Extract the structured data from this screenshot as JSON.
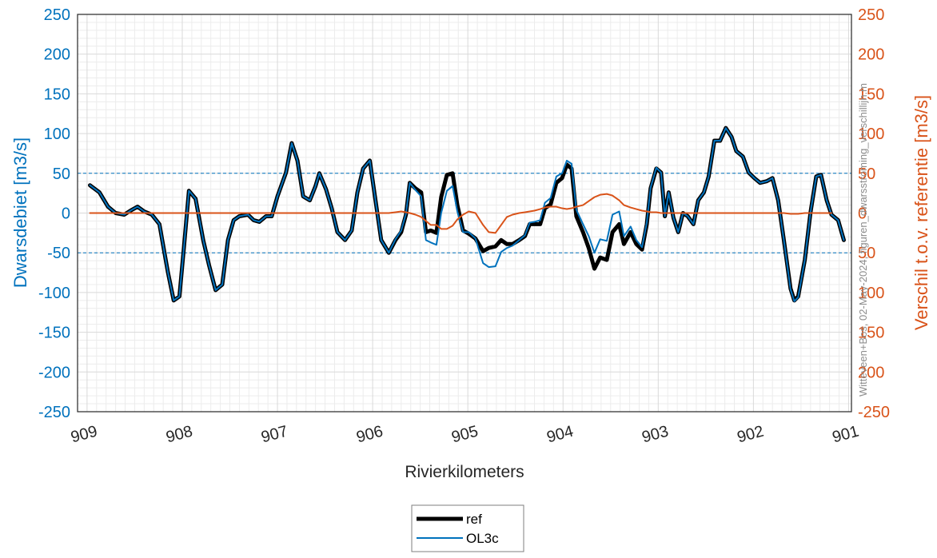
{
  "chart_data": {
    "type": "line",
    "xlabel": "Rivierkilometers",
    "ylabel": "Dwarsdebiet [m3/s]",
    "y2label": "Verschil t.o.v. referentie [m3/s]",
    "annotation": "Witteveen+Bos, 02-May-2024, figuren_dwarsstroming_verschillijn.m",
    "xlim": [
      909.1,
      900.97
    ],
    "xticks": [
      909,
      908,
      907,
      906,
      905,
      904,
      903,
      902,
      901
    ],
    "ylim": [
      -250,
      250
    ],
    "yticks": [
      -250,
      -200,
      -150,
      -100,
      -50,
      0,
      50,
      100,
      150,
      200,
      250
    ],
    "y2lim": [
      -250,
      250
    ],
    "y2ticks": [
      -250,
      {
        "value": -200,
        "label": "200"
      },
      {
        "value": -150,
        "label": "150"
      },
      {
        "value": -100,
        "label": "100"
      },
      {
        "value": -50,
        "label": "50"
      },
      0,
      50,
      100,
      150,
      200,
      250
    ],
    "y_color": "#0072BD",
    "y2_color": "#D95319",
    "grid": true,
    "minor_grid": true,
    "hlines": [
      -50,
      50
    ],
    "hline_color": "#0072BD",
    "legend": "below",
    "x": [
      908.97,
      908.87,
      908.78,
      908.7,
      908.61,
      908.53,
      908.47,
      908.4,
      908.32,
      908.24,
      908.15,
      908.09,
      908.03,
      907.98,
      907.93,
      907.86,
      907.78,
      907.72,
      907.65,
      907.58,
      907.52,
      907.46,
      907.4,
      907.31,
      907.25,
      907.19,
      907.12,
      907.06,
      907.0,
      906.91,
      906.85,
      906.79,
      906.73,
      906.66,
      906.6,
      906.56,
      906.49,
      906.43,
      906.37,
      906.29,
      906.22,
      906.16,
      906.1,
      906.03,
      905.97,
      905.91,
      905.83,
      905.76,
      905.7,
      905.65,
      905.61,
      905.55,
      905.49,
      905.44,
      905.39,
      905.33,
      905.28,
      905.22,
      905.16,
      905.11,
      905.05,
      904.99,
      904.92,
      904.84,
      904.78,
      904.71,
      904.65,
      904.59,
      904.53,
      904.46,
      904.4,
      904.35,
      904.3,
      904.24,
      904.19,
      904.13,
      904.07,
      904.01,
      903.96,
      903.91,
      903.86,
      903.79,
      903.73,
      903.67,
      903.61,
      903.54,
      903.48,
      903.41,
      903.36,
      903.29,
      903.23,
      903.17,
      903.12,
      903.08,
      903.02,
      902.97,
      902.93,
      902.89,
      902.84,
      902.79,
      902.74,
      902.69,
      902.63,
      902.58,
      902.52,
      902.47,
      902.41,
      902.35,
      902.29,
      902.23,
      902.18,
      902.11,
      902.05,
      901.99,
      901.93,
      901.86,
      901.8,
      901.74,
      901.68,
      901.61,
      901.57,
      901.53,
      901.46,
      901.4,
      901.34,
      901.29,
      901.23,
      901.18,
      901.11,
      901.05
    ],
    "series": [
      {
        "name": "ref",
        "color": "#000000",
        "values": [
          35,
          26,
          8,
          0,
          -2,
          4,
          8,
          2,
          -2,
          -14,
          -75,
          -110,
          -105,
          -40,
          28,
          18,
          -34,
          -65,
          -97,
          -90,
          -34,
          -9,
          -4,
          -2,
          -9,
          -11,
          -4,
          -4,
          21,
          51,
          88,
          66,
          21,
          16,
          34,
          50,
          30,
          6,
          -24,
          -34,
          -22,
          26,
          56,
          66,
          16,
          -34,
          -50,
          -34,
          -24,
          -2,
          38,
          31,
          26,
          -24,
          -22,
          -25,
          20,
          48,
          50,
          10,
          -22,
          -26,
          -32,
          -48,
          -44,
          -42,
          -34,
          -39,
          -39,
          -34,
          -29,
          -14,
          -14,
          -14,
          6,
          11,
          38,
          44,
          61,
          56,
          -4,
          -24,
          -44,
          -70,
          -56,
          -59,
          -24,
          -14,
          -39,
          -24,
          -39,
          -46,
          -14,
          31,
          56,
          51,
          -4,
          26,
          -6,
          -24,
          0,
          -4,
          -14,
          16,
          26,
          46,
          91,
          91,
          107,
          96,
          78,
          71,
          51,
          44,
          38,
          40,
          44,
          16,
          -34,
          -95,
          -110,
          -105,
          -59,
          1,
          46,
          48,
          16,
          -2,
          -9,
          -34
        ]
      },
      {
        "name": "OL3c",
        "color": "#0072BD",
        "values": [
          35,
          26,
          8,
          0,
          -2,
          4,
          8,
          2,
          -2,
          -14,
          -75,
          -110,
          -105,
          -40,
          28,
          18,
          -34,
          -65,
          -97,
          -90,
          -34,
          -9,
          -4,
          -2,
          -9,
          -11,
          -4,
          -4,
          21,
          51,
          88,
          66,
          21,
          16,
          34,
          50,
          30,
          6,
          -24,
          -34,
          -22,
          26,
          56,
          66,
          16,
          -34,
          -50,
          -33,
          -22,
          -1,
          38,
          29,
          21,
          -34,
          -37,
          -40,
          0,
          28,
          34,
          2,
          -24,
          -24,
          -32,
          -63,
          -68,
          -67,
          -49,
          -44,
          -41,
          -34,
          -28,
          -12,
          -11,
          -9,
          13,
          19,
          46,
          50,
          66,
          62,
          4,
          -14,
          -29,
          -50,
          -33,
          -35,
          -2,
          2,
          -29,
          -17,
          -34,
          -43,
          -12,
          32,
          57,
          51,
          -4,
          26,
          -6,
          -24,
          0,
          -4,
          -14,
          16,
          26,
          46,
          91,
          91,
          107,
          96,
          78,
          71,
          51,
          44,
          38,
          40,
          44,
          16,
          -34,
          -96,
          -111,
          -106,
          -59,
          1,
          46,
          48,
          16,
          -2,
          -9,
          -34
        ]
      },
      {
        "color": "#D95319",
        "axis": "y2",
        "values": [
          0,
          0,
          0,
          0,
          0,
          0,
          0,
          0,
          0,
          0,
          0,
          0,
          0,
          0,
          0,
          0,
          0,
          0,
          0,
          0,
          0,
          0,
          0,
          0,
          0,
          0,
          0,
          0,
          0,
          0,
          0,
          0,
          0,
          0,
          0,
          0,
          0,
          0,
          0,
          0,
          0,
          0,
          0,
          0,
          0,
          0,
          0,
          1,
          2,
          1,
          0,
          -2,
          -5,
          -10,
          -15,
          -15,
          -20,
          -20,
          -16,
          -8,
          -2,
          2,
          0,
          -15,
          -24,
          -25,
          -15,
          -5,
          -2,
          0,
          1,
          2,
          3,
          5,
          7,
          8,
          8,
          6,
          5,
          6,
          8,
          10,
          15,
          20,
          23,
          24,
          22,
          16,
          10,
          7,
          5,
          3,
          2,
          1,
          1,
          0,
          0,
          0,
          0,
          0,
          0,
          0,
          0,
          0,
          0,
          0,
          0,
          0,
          0,
          0,
          0,
          0,
          0,
          0,
          0,
          0,
          0,
          0,
          0,
          -1,
          -1,
          -1,
          0,
          0,
          0,
          0,
          0,
          0,
          null,
          null
        ]
      }
    ]
  }
}
